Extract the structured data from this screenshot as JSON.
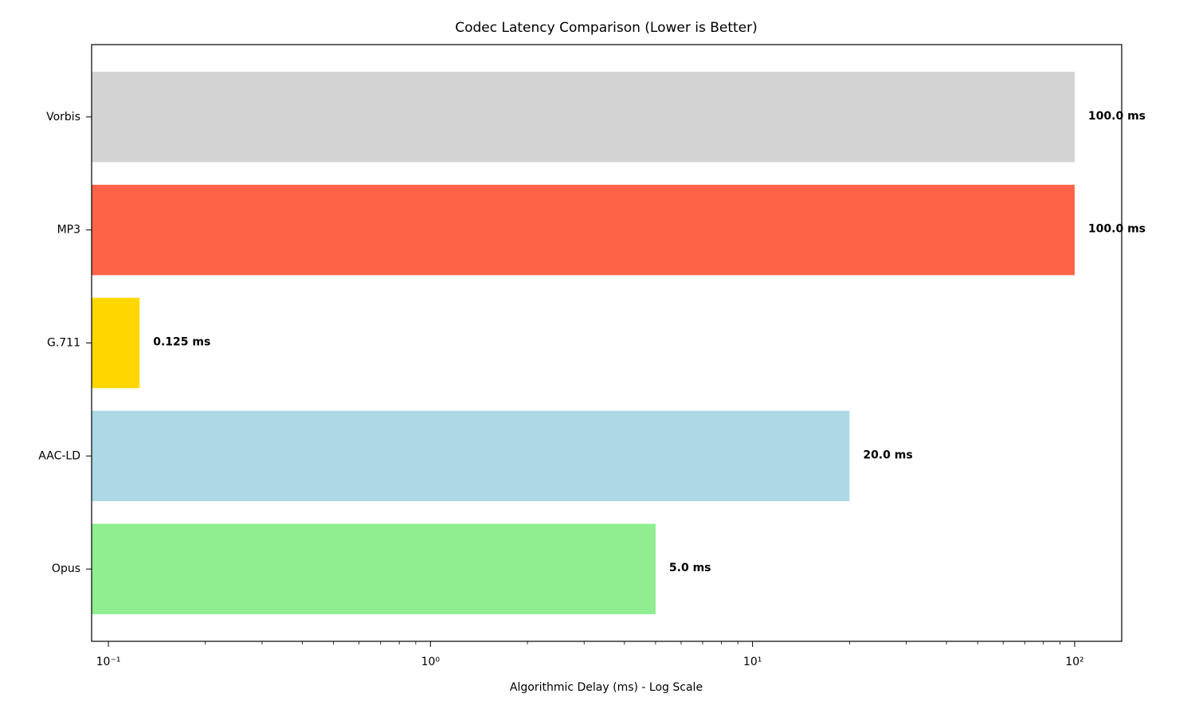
{
  "chart_data": {
    "type": "barh",
    "title": "Codec Latency Comparison (Lower is Better)",
    "xlabel": "Algorithmic Delay (ms) - Log Scale",
    "categories": [
      "Opus",
      "AAC-LD",
      "G.711",
      "MP3",
      "Vorbis"
    ],
    "values": [
      5.0,
      20.0,
      0.125,
      100.0,
      100.0
    ],
    "value_labels": [
      "5.0 ms",
      "20.0 ms",
      "0.125 ms",
      "100.0 ms",
      "100.0 ms"
    ],
    "colors": [
      "#90ee90",
      "#add8e6",
      "#ffd700",
      "#ff6347",
      "#d3d3d3"
    ],
    "xscale": "log",
    "xlim": [
      0.0887,
      140
    ],
    "xticks": [
      {
        "value": 0.1,
        "label": "10⁻¹"
      },
      {
        "value": 1,
        "label": "10⁰"
      },
      {
        "value": 10,
        "label": "10¹"
      },
      {
        "value": 100,
        "label": "10²"
      }
    ],
    "xminorticks": [
      0.2,
      0.3,
      0.4,
      0.5,
      0.6,
      0.7,
      0.8,
      0.9,
      2,
      3,
      4,
      5,
      6,
      7,
      8,
      9,
      20,
      30,
      40,
      50,
      60,
      70,
      80,
      90
    ]
  }
}
